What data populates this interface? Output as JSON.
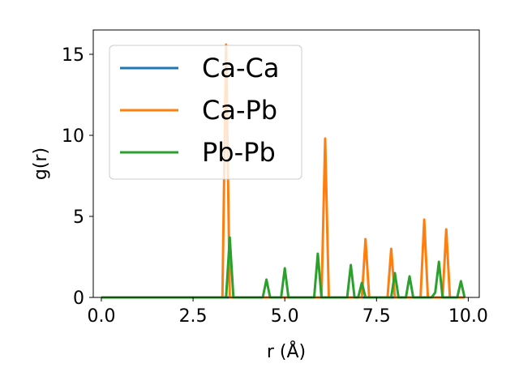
{
  "chart_data": {
    "type": "line",
    "xlabel": "r (Å)",
    "ylabel": "g(r)",
    "xlim": [
      -0.22,
      10.3
    ],
    "ylim": [
      0,
      16.5
    ],
    "xticks": [
      0.0,
      2.5,
      5.0,
      7.5,
      10.0
    ],
    "xtick_labels": [
      "0.0",
      "2.5",
      "5.0",
      "7.5",
      "10.0"
    ],
    "yticks": [
      0,
      5,
      10,
      15
    ],
    "ytick_labels": [
      "0",
      "5",
      "10",
      "15"
    ],
    "grid": false,
    "legend_position": "top-left",
    "series": [
      {
        "name": "Ca-Ca",
        "color": "#1f77b4",
        "x": [
          0.0,
          9.9
        ],
        "y": [
          0.0,
          0.0
        ]
      },
      {
        "name": "Ca-Pb",
        "color": "#ff7f0e",
        "x": [
          0.0,
          3.3,
          3.4,
          3.5,
          6.0,
          6.1,
          6.2,
          7.1,
          7.2,
          7.3,
          7.8,
          7.9,
          8.0,
          8.7,
          8.8,
          8.9,
          9.3,
          9.4,
          9.5,
          9.9
        ],
        "y": [
          0.0,
          0.0,
          15.6,
          0.0,
          0.0,
          9.8,
          0.0,
          0.0,
          3.6,
          0.0,
          0.0,
          3.0,
          0.0,
          0.0,
          4.8,
          0.0,
          0.0,
          4.2,
          0.0,
          0.0
        ]
      },
      {
        "name": "Pb-Pb",
        "color": "#2ca02c",
        "x": [
          0.0,
          3.4,
          3.5,
          3.6,
          4.4,
          4.5,
          4.6,
          4.9,
          5.0,
          5.1,
          5.8,
          5.9,
          6.0,
          6.7,
          6.8,
          6.9,
          7.0,
          7.1,
          7.2,
          7.9,
          8.0,
          8.1,
          8.3,
          8.4,
          8.5,
          9.0,
          9.1,
          9.2,
          9.3,
          9.7,
          9.8,
          9.9
        ],
        "y": [
          0.0,
          0.0,
          3.7,
          0.0,
          0.0,
          1.1,
          0.0,
          0.0,
          1.8,
          0.0,
          0.0,
          2.7,
          0.0,
          0.0,
          2.0,
          0.0,
          0.0,
          0.9,
          0.0,
          0.0,
          1.5,
          0.0,
          0.0,
          1.3,
          0.0,
          0.0,
          0.3,
          2.2,
          0.0,
          0.0,
          1.0,
          0.0
        ]
      }
    ]
  }
}
